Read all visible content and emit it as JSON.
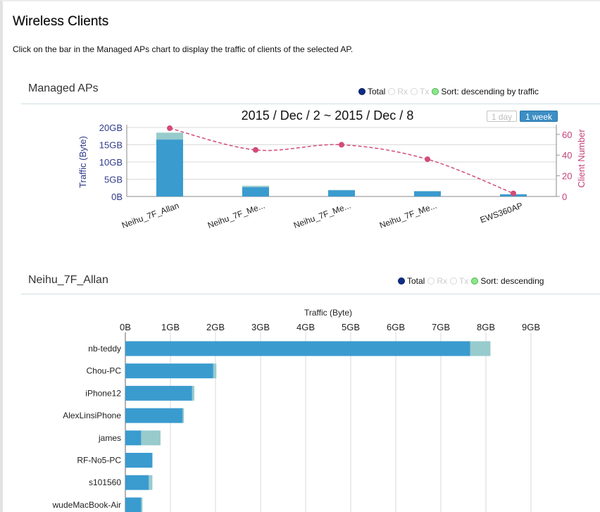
{
  "page": {
    "title": "Wireless Clients",
    "instruction": "Click on the bar in the Managed APs chart to display the traffic of clients of the selected AP."
  },
  "managed_aps": {
    "section_title": "Managed APs",
    "options": {
      "total": "Total",
      "rx": "Rx",
      "tx": "Tx",
      "sort": "Sort: descending by traffic"
    },
    "chart_title": "2015 / Dec / 2 ~ 2015 / Dec / 8",
    "range_buttons": {
      "day": "1 day",
      "week": "1 week",
      "selected": "1 week"
    }
  },
  "selected_ap": {
    "section_title": "Neihu_7F_Allan",
    "options": {
      "total": "Total",
      "rx": "Rx",
      "tx": "Tx",
      "sort": "Sort: descending"
    }
  },
  "colors": {
    "primary_bar": "#3a9bcf",
    "secondary_bar": "#97cbcc",
    "client_line": "#d14c79",
    "left_axis_text": "#303a8a",
    "right_axis_text": "#c4427a",
    "grid": "#d9d9d9",
    "selected_radio": "#0b2e88",
    "sort_radio": "#8be78b"
  },
  "chart_data": [
    {
      "type": "bar",
      "categories": [
        "Neihu_7F_Allan",
        "Neihu_7F_Me...",
        "Neihu_7F_Me...",
        "Neihu_7F_Me...",
        "EWS360AP"
      ],
      "series": [
        {
          "values": [
            16.5,
            2.7,
            1.8,
            1.5,
            0.6
          ]
        },
        {
          "values": [
            2.0,
            0.4,
            0.1,
            0.1,
            0.1
          ]
        },
        {
          "axis": "right",
          "type": "line",
          "values": [
            66,
            45,
            50,
            36,
            3
          ]
        }
      ],
      "ylabel": "Traffic (Byte)",
      "y2label": "Client Number",
      "yticks": [
        "0B",
        "5GB",
        "10GB",
        "15GB",
        "20GB"
      ],
      "ylim": [
        0,
        20
      ],
      "y2ticks": [
        "0",
        "20",
        "40",
        "60"
      ],
      "y2lim": [
        0,
        66.7
      ],
      "grid": true,
      "stacked": true
    },
    {
      "type": "bar",
      "orientation": "horizontal",
      "categories": [
        "nb-teddy",
        "Chou-PC",
        "iPhone12",
        "AlexLinsiPhone",
        "james",
        "RF-No5-PC",
        "s101560",
        "wudeMacBook-Air"
      ],
      "series": [
        {
          "values": [
            7.65,
            1.95,
            1.48,
            1.27,
            0.35,
            0.6,
            0.52,
            0.35
          ]
        },
        {
          "values": [
            0.45,
            0.07,
            0.05,
            0.03,
            0.43,
            0.0,
            0.08,
            0.03
          ]
        }
      ],
      "xlabel": "Traffic (Byte)",
      "xticks": [
        "0B",
        "1GB",
        "2GB",
        "3GB",
        "4GB",
        "5GB",
        "6GB",
        "7GB",
        "8GB",
        "9GB"
      ],
      "xlim": [
        0,
        9
      ],
      "grid": true,
      "stacked": true
    }
  ]
}
